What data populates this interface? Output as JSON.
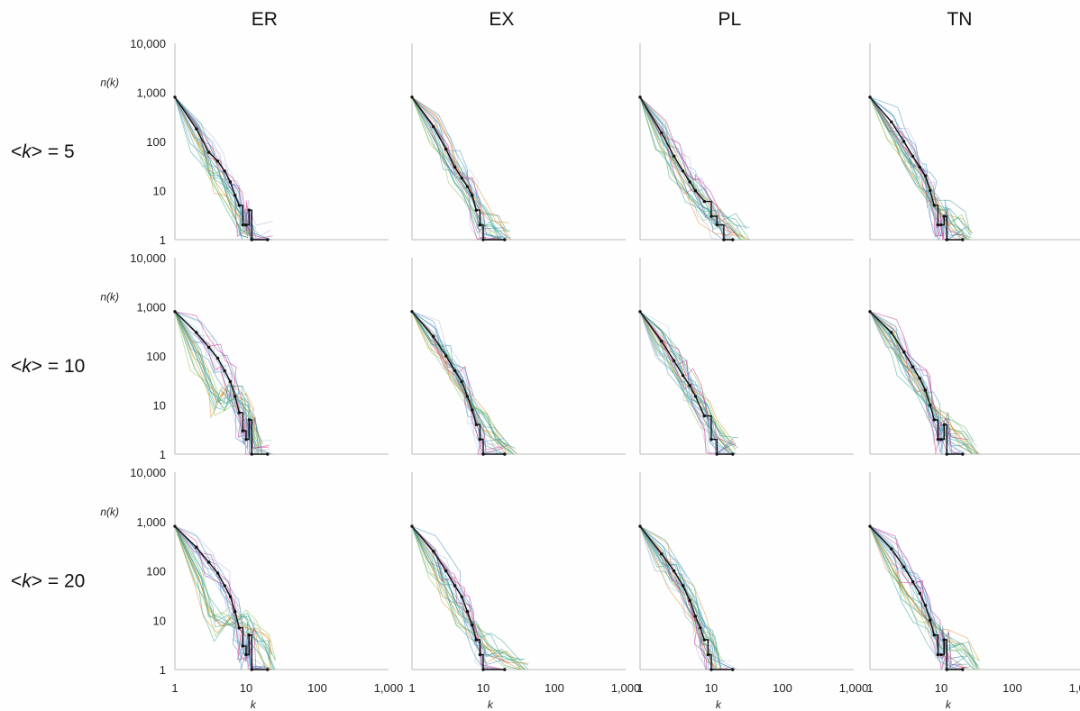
{
  "chart_data": {
    "type": "line",
    "layout": "small-multiples-3x4",
    "x_scale": "log",
    "y_scale": "log",
    "xlim": [
      1,
      1000
    ],
    "ylim": [
      1,
      10000
    ],
    "x_ticks": [
      1,
      10,
      100,
      1000
    ],
    "x_tick_labels": [
      "1",
      "10",
      "100",
      "1,000"
    ],
    "y_ticks": [
      1,
      10,
      100,
      1000,
      10000
    ],
    "y_tick_labels": [
      "1",
      "10",
      "100",
      "1,000",
      "10,000"
    ],
    "xlabel": "k",
    "ylabel": "n(k)",
    "column_titles": [
      "ER",
      "EX",
      "PL",
      "TN"
    ],
    "row_labels": [
      {
        "pre": "<",
        "k": "k",
        "post": "> = 5"
      },
      {
        "pre": "<",
        "k": "k",
        "post": "> = 10"
      },
      {
        "pre": "<",
        "k": "k",
        "post": "> = 20"
      }
    ],
    "grid": false,
    "series_style": "black reference line with dot markers plus many thin colored ensemble lines",
    "panels": [
      {
        "row": 0,
        "col": 0,
        "reference": [
          [
            1,
            800
          ],
          [
            2,
            180
          ],
          [
            3,
            60
          ],
          [
            4,
            40
          ],
          [
            5,
            25
          ],
          [
            6,
            15
          ],
          [
            7,
            8
          ],
          [
            8,
            5
          ],
          [
            9,
            2
          ],
          [
            10,
            2
          ],
          [
            11,
            4
          ],
          [
            12,
            1
          ],
          [
            20,
            1
          ]
        ],
        "spread": [
          [
            1,
            800
          ],
          [
            2,
            120
          ],
          [
            3,
            25
          ],
          [
            4,
            15
          ],
          [
            6,
            6
          ],
          [
            8,
            2
          ],
          [
            12,
            1
          ]
        ]
      },
      {
        "row": 0,
        "col": 1,
        "reference": [
          [
            1,
            800
          ],
          [
            2,
            200
          ],
          [
            3,
            70
          ],
          [
            4,
            30
          ],
          [
            5,
            18
          ],
          [
            6,
            12
          ],
          [
            7,
            8
          ],
          [
            8,
            4
          ],
          [
            9,
            2
          ],
          [
            10,
            1
          ],
          [
            20,
            1
          ]
        ],
        "spread": [
          [
            1,
            800
          ],
          [
            2,
            160
          ],
          [
            3,
            50
          ],
          [
            4,
            25
          ],
          [
            6,
            10
          ],
          [
            10,
            3
          ],
          [
            15,
            2
          ],
          [
            20,
            1
          ]
        ]
      },
      {
        "row": 0,
        "col": 2,
        "reference": [
          [
            1,
            800
          ],
          [
            2,
            150
          ],
          [
            3,
            50
          ],
          [
            4,
            25
          ],
          [
            5,
            15
          ],
          [
            6,
            10
          ],
          [
            8,
            6
          ],
          [
            10,
            3
          ],
          [
            12,
            2
          ],
          [
            15,
            1
          ],
          [
            20,
            1
          ]
        ],
        "spread": [
          [
            1,
            800
          ],
          [
            2,
            130
          ],
          [
            3,
            40
          ],
          [
            5,
            12
          ],
          [
            8,
            5
          ],
          [
            12,
            3
          ],
          [
            20,
            2
          ],
          [
            30,
            1
          ]
        ]
      },
      {
        "row": 0,
        "col": 3,
        "reference": [
          [
            1,
            800
          ],
          [
            2,
            250
          ],
          [
            3,
            100
          ],
          [
            4,
            50
          ],
          [
            5,
            30
          ],
          [
            6,
            20
          ],
          [
            7,
            10
          ],
          [
            8,
            5
          ],
          [
            9,
            2
          ],
          [
            10,
            2
          ],
          [
            11,
            3
          ],
          [
            12,
            1
          ],
          [
            20,
            1
          ]
        ],
        "spread": [
          [
            1,
            800
          ],
          [
            2,
            180
          ],
          [
            3,
            60
          ],
          [
            5,
            20
          ],
          [
            8,
            6
          ],
          [
            12,
            3
          ],
          [
            18,
            2
          ],
          [
            25,
            1
          ]
        ]
      },
      {
        "row": 1,
        "col": 0,
        "reference": [
          [
            1,
            800
          ],
          [
            2,
            300
          ],
          [
            3,
            150
          ],
          [
            4,
            90
          ],
          [
            5,
            50
          ],
          [
            6,
            30
          ],
          [
            7,
            15
          ],
          [
            8,
            7
          ],
          [
            9,
            3
          ],
          [
            10,
            2
          ],
          [
            11,
            5
          ],
          [
            12,
            1
          ],
          [
            20,
            1
          ]
        ],
        "spread": [
          [
            1,
            800
          ],
          [
            2,
            100
          ],
          [
            3,
            30
          ],
          [
            4,
            12
          ],
          [
            5,
            15
          ],
          [
            6,
            18
          ],
          [
            8,
            15
          ],
          [
            10,
            10
          ],
          [
            12,
            5
          ],
          [
            15,
            1
          ]
        ]
      },
      {
        "row": 1,
        "col": 1,
        "reference": [
          [
            1,
            800
          ],
          [
            2,
            250
          ],
          [
            3,
            100
          ],
          [
            4,
            50
          ],
          [
            5,
            30
          ],
          [
            6,
            15
          ],
          [
            7,
            8
          ],
          [
            8,
            4
          ],
          [
            9,
            2
          ],
          [
            10,
            1
          ],
          [
            20,
            1
          ]
        ],
        "spread": [
          [
            1,
            800
          ],
          [
            2,
            200
          ],
          [
            3,
            80
          ],
          [
            4,
            40
          ],
          [
            6,
            12
          ],
          [
            10,
            4
          ],
          [
            15,
            2
          ],
          [
            25,
            1
          ]
        ]
      },
      {
        "row": 1,
        "col": 2,
        "reference": [
          [
            1,
            800
          ],
          [
            2,
            200
          ],
          [
            3,
            80
          ],
          [
            4,
            40
          ],
          [
            5,
            25
          ],
          [
            6,
            15
          ],
          [
            8,
            6
          ],
          [
            10,
            2
          ],
          [
            12,
            1
          ],
          [
            20,
            1
          ]
        ],
        "spread": [
          [
            1,
            800
          ],
          [
            2,
            180
          ],
          [
            3,
            70
          ],
          [
            5,
            20
          ],
          [
            8,
            6
          ],
          [
            12,
            3
          ],
          [
            20,
            1
          ]
        ]
      },
      {
        "row": 1,
        "col": 3,
        "reference": [
          [
            1,
            800
          ],
          [
            2,
            300
          ],
          [
            3,
            120
          ],
          [
            4,
            60
          ],
          [
            5,
            35
          ],
          [
            6,
            20
          ],
          [
            7,
            10
          ],
          [
            8,
            5
          ],
          [
            9,
            2
          ],
          [
            10,
            2
          ],
          [
            11,
            4
          ],
          [
            12,
            1
          ],
          [
            20,
            1
          ]
        ],
        "spread": [
          [
            1,
            800
          ],
          [
            2,
            220
          ],
          [
            3,
            80
          ],
          [
            5,
            25
          ],
          [
            8,
            8
          ],
          [
            12,
            4
          ],
          [
            20,
            2
          ],
          [
            30,
            1
          ]
        ]
      },
      {
        "row": 2,
        "col": 0,
        "reference": [
          [
            1,
            800
          ],
          [
            2,
            300
          ],
          [
            3,
            150
          ],
          [
            4,
            90
          ],
          [
            5,
            50
          ],
          [
            6,
            30
          ],
          [
            7,
            15
          ],
          [
            8,
            7
          ],
          [
            9,
            3
          ],
          [
            10,
            2
          ],
          [
            11,
            5
          ],
          [
            12,
            1
          ],
          [
            20,
            1
          ]
        ],
        "spread": [
          [
            1,
            800
          ],
          [
            2,
            60
          ],
          [
            3,
            15
          ],
          [
            4,
            8
          ],
          [
            6,
            10
          ],
          [
            10,
            8
          ],
          [
            14,
            5
          ],
          [
            18,
            3
          ],
          [
            22,
            1
          ]
        ]
      },
      {
        "row": 2,
        "col": 1,
        "reference": [
          [
            1,
            800
          ],
          [
            2,
            250
          ],
          [
            3,
            100
          ],
          [
            4,
            50
          ],
          [
            5,
            30
          ],
          [
            6,
            15
          ],
          [
            7,
            8
          ],
          [
            8,
            4
          ],
          [
            9,
            2
          ],
          [
            10,
            1
          ],
          [
            20,
            1
          ]
        ],
        "spread": [
          [
            1,
            800
          ],
          [
            2,
            150
          ],
          [
            3,
            50
          ],
          [
            5,
            15
          ],
          [
            8,
            6
          ],
          [
            12,
            3
          ],
          [
            20,
            2
          ],
          [
            40,
            1
          ]
        ]
      },
      {
        "row": 2,
        "col": 2,
        "reference": [
          [
            1,
            800
          ],
          [
            2,
            220
          ],
          [
            3,
            100
          ],
          [
            4,
            50
          ],
          [
            5,
            25
          ],
          [
            6,
            12
          ],
          [
            7,
            7
          ],
          [
            8,
            4
          ],
          [
            9,
            2
          ],
          [
            10,
            1
          ],
          [
            20,
            1
          ]
        ],
        "spread": [
          [
            1,
            800
          ],
          [
            2,
            200
          ],
          [
            3,
            90
          ],
          [
            5,
            25
          ],
          [
            7,
            8
          ],
          [
            10,
            3
          ],
          [
            13,
            1
          ]
        ]
      },
      {
        "row": 2,
        "col": 3,
        "reference": [
          [
            1,
            800
          ],
          [
            2,
            280
          ],
          [
            3,
            120
          ],
          [
            4,
            60
          ],
          [
            5,
            35
          ],
          [
            6,
            20
          ],
          [
            7,
            10
          ],
          [
            8,
            5
          ],
          [
            9,
            2
          ],
          [
            10,
            2
          ],
          [
            11,
            4
          ],
          [
            12,
            1
          ],
          [
            20,
            1
          ]
        ],
        "spread": [
          [
            1,
            800
          ],
          [
            2,
            120
          ],
          [
            3,
            40
          ],
          [
            5,
            15
          ],
          [
            8,
            6
          ],
          [
            12,
            3
          ],
          [
            20,
            2
          ],
          [
            30,
            1
          ]
        ]
      }
    ],
    "colors": {
      "reference": "#111111",
      "ensemble": [
        "#1f9e89",
        "#2a7fb8",
        "#7fbc41",
        "#9ecae1",
        "#e08214",
        "#b2abd2",
        "#35978f",
        "#c51b7d"
      ]
    }
  }
}
